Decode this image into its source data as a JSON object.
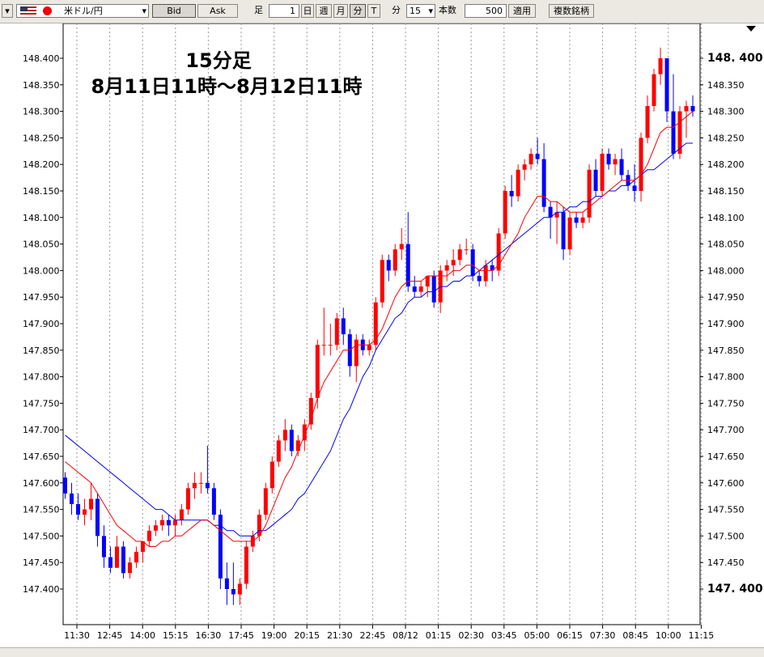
{
  "toolbar": {
    "pair": "米ドル/円",
    "bid_label": "Bid",
    "ask_label": "Ask",
    "ashi_label": "足",
    "ashi_value": "1",
    "day_label": "日",
    "week_label": "週",
    "month_label": "月",
    "minute_label": "分",
    "tick_label": "T",
    "minute_text": "分",
    "minute_value": "15",
    "count_label": "本数",
    "count_value": "500",
    "apply_label": "適用",
    "multi_label": "複数銘柄",
    "colors": {
      "up": "#ff0000",
      "down": "#0000ff",
      "ma_short": "#ff0000",
      "ma_long": "#0000ff"
    }
  },
  "title": {
    "line1": "15分足",
    "line2": "8月11日11時〜8月12日11時"
  },
  "chart_data": {
    "type": "candlestick",
    "x_tick_labels": [
      "11:30",
      "12:45",
      "14:00",
      "15:15",
      "16:30",
      "17:45",
      "19:00",
      "20:15",
      "21:30",
      "22:45",
      "08/12",
      "01:15",
      "02:30",
      "03:45",
      "05:00",
      "06:15",
      "07:30",
      "08:45",
      "10:00",
      "11:15"
    ],
    "y_tick_labels": [
      "148.400",
      "148.350",
      "148.300",
      "148.250",
      "148.200",
      "148.150",
      "148.100",
      "148.050",
      "148.000",
      "147.950",
      "147.900",
      "147.850",
      "147.800",
      "147.750",
      "147.700",
      "147.650",
      "147.600",
      "147.550",
      "147.500",
      "147.450",
      "147.400"
    ],
    "y_tick_labels_right": [
      "148. 400",
      "148.350",
      "148.300",
      "148.250",
      "148.200",
      "148.150",
      "148.100",
      "148.050",
      "148.000",
      "147.950",
      "147.900",
      "147.850",
      "147.800",
      "147.750",
      "147.700",
      "147.650",
      "147.600",
      "147.550",
      "147.500",
      "147.450",
      "147. 400"
    ],
    "y_range": [
      147.35,
      148.45
    ],
    "grid": "vertical-dashed",
    "up_color": "#ff0000",
    "down_color": "#0000ff",
    "candles": [
      [
        147.61,
        147.62,
        147.57,
        147.58
      ],
      [
        147.58,
        147.6,
        147.54,
        147.56
      ],
      [
        147.56,
        147.58,
        147.53,
        147.54
      ],
      [
        147.54,
        147.57,
        147.52,
        147.55
      ],
      [
        147.55,
        147.6,
        147.53,
        147.57
      ],
      [
        147.57,
        147.58,
        147.48,
        147.5
      ],
      [
        147.5,
        147.52,
        147.44,
        147.46
      ],
      [
        147.46,
        147.48,
        147.43,
        147.44
      ],
      [
        147.44,
        147.5,
        147.44,
        147.48
      ],
      [
        147.48,
        147.49,
        147.42,
        147.43
      ],
      [
        147.43,
        147.46,
        147.42,
        147.45
      ],
      [
        147.45,
        147.48,
        147.44,
        147.47
      ],
      [
        147.47,
        147.49,
        147.45,
        147.49
      ],
      [
        147.49,
        147.52,
        147.48,
        147.51
      ],
      [
        147.51,
        147.53,
        147.5,
        147.52
      ],
      [
        147.52,
        147.54,
        147.51,
        147.53
      ],
      [
        147.53,
        147.54,
        147.5,
        147.52
      ],
      [
        147.52,
        147.54,
        147.5,
        147.53
      ],
      [
        147.53,
        147.56,
        147.52,
        147.55
      ],
      [
        147.55,
        147.6,
        147.54,
        147.59
      ],
      [
        147.59,
        147.62,
        147.57,
        147.6
      ],
      [
        147.6,
        147.62,
        147.58,
        147.6
      ],
      [
        147.6,
        147.67,
        147.58,
        147.59
      ],
      [
        147.59,
        147.6,
        147.53,
        147.54
      ],
      [
        147.54,
        147.55,
        147.4,
        147.42
      ],
      [
        147.42,
        147.45,
        147.37,
        147.4
      ],
      [
        147.4,
        147.45,
        147.37,
        147.39
      ],
      [
        147.39,
        147.42,
        147.37,
        147.41
      ],
      [
        147.41,
        147.49,
        147.4,
        147.48
      ],
      [
        147.48,
        147.51,
        147.47,
        147.5
      ],
      [
        147.5,
        147.55,
        147.49,
        147.54
      ],
      [
        147.54,
        147.6,
        147.53,
        147.59
      ],
      [
        147.59,
        147.65,
        147.58,
        147.64
      ],
      [
        147.64,
        147.69,
        147.63,
        147.68
      ],
      [
        147.68,
        147.72,
        147.66,
        147.7
      ],
      [
        147.7,
        147.71,
        147.65,
        147.66
      ],
      [
        147.66,
        147.69,
        147.65,
        147.68
      ],
      [
        147.68,
        147.72,
        147.66,
        147.71
      ],
      [
        147.71,
        147.77,
        147.7,
        147.76
      ],
      [
        147.76,
        147.87,
        147.74,
        147.86
      ],
      [
        147.86,
        147.93,
        147.84,
        147.86
      ],
      [
        147.86,
        147.9,
        147.84,
        147.86
      ],
      [
        147.86,
        147.92,
        147.85,
        147.91
      ],
      [
        147.91,
        147.93,
        147.86,
        147.88
      ],
      [
        147.88,
        147.89,
        147.8,
        147.82
      ],
      [
        147.82,
        147.88,
        147.79,
        147.87
      ],
      [
        147.87,
        147.88,
        147.84,
        147.85
      ],
      [
        147.85,
        147.87,
        147.84,
        147.86
      ],
      [
        147.86,
        147.95,
        147.85,
        147.94
      ],
      [
        147.94,
        148.03,
        147.93,
        148.02
      ],
      [
        148.02,
        148.03,
        147.98,
        148.0
      ],
      [
        148.0,
        148.05,
        147.99,
        148.04
      ],
      [
        148.04,
        148.08,
        148.02,
        148.05
      ],
      [
        148.05,
        148.11,
        147.96,
        147.97
      ],
      [
        147.97,
        147.99,
        147.95,
        147.96
      ],
      [
        147.96,
        147.98,
        147.95,
        147.97
      ],
      [
        147.97,
        147.99,
        147.95,
        147.99
      ],
      [
        147.99,
        148.0,
        147.93,
        147.94
      ],
      [
        147.94,
        148.01,
        147.92,
        148.0
      ],
      [
        148.0,
        148.02,
        147.98,
        148.01
      ],
      [
        148.01,
        148.04,
        147.99,
        148.02
      ],
      [
        148.02,
        148.05,
        148.01,
        148.04
      ],
      [
        148.04,
        148.06,
        148.03,
        148.04
      ],
      [
        148.04,
        148.05,
        147.98,
        147.99
      ],
      [
        147.99,
        148.0,
        147.97,
        147.98
      ],
      [
        147.98,
        148.02,
        147.97,
        148.01
      ],
      [
        148.01,
        148.02,
        147.98,
        148.0
      ],
      [
        148.0,
        148.08,
        147.99,
        148.07
      ],
      [
        148.07,
        148.16,
        148.06,
        148.15
      ],
      [
        148.15,
        148.18,
        148.12,
        148.14
      ],
      [
        148.14,
        148.2,
        148.13,
        148.19
      ],
      [
        148.19,
        148.21,
        148.17,
        148.2
      ],
      [
        148.2,
        148.23,
        148.19,
        148.22
      ],
      [
        148.22,
        148.25,
        148.2,
        148.21
      ],
      [
        148.21,
        148.24,
        148.11,
        148.12
      ],
      [
        148.12,
        148.13,
        148.06,
        148.1
      ],
      [
        148.1,
        148.13,
        148.05,
        148.11
      ],
      [
        148.11,
        148.12,
        148.02,
        148.04
      ],
      [
        148.04,
        148.11,
        148.03,
        148.1
      ],
      [
        148.1,
        148.11,
        148.08,
        148.09
      ],
      [
        148.09,
        148.11,
        148.08,
        148.1
      ],
      [
        148.1,
        148.2,
        148.09,
        148.19
      ],
      [
        148.19,
        148.21,
        148.14,
        148.15
      ],
      [
        148.15,
        148.23,
        148.14,
        148.22
      ],
      [
        148.22,
        148.23,
        148.19,
        148.2
      ],
      [
        148.2,
        148.22,
        148.18,
        148.21
      ],
      [
        148.21,
        148.23,
        148.17,
        148.18
      ],
      [
        148.18,
        148.19,
        148.15,
        148.16
      ],
      [
        148.16,
        148.2,
        148.13,
        148.15
      ],
      [
        148.15,
        148.26,
        148.13,
        148.25
      ],
      [
        148.25,
        148.33,
        148.24,
        148.31
      ],
      [
        148.31,
        148.38,
        148.3,
        148.37
      ],
      [
        148.37,
        148.42,
        148.35,
        148.4
      ],
      [
        148.4,
        148.4,
        148.28,
        148.3
      ],
      [
        148.3,
        148.37,
        148.21,
        148.22
      ],
      [
        148.22,
        148.31,
        148.21,
        148.3
      ],
      [
        148.3,
        148.32,
        148.25,
        148.31
      ],
      [
        148.31,
        148.33,
        148.29,
        148.3
      ]
    ],
    "ma_short": [
      147.64,
      147.63,
      147.62,
      147.61,
      147.6,
      147.58,
      147.56,
      147.54,
      147.52,
      147.51,
      147.5,
      147.49,
      147.49,
      147.48,
      147.48,
      147.49,
      147.49,
      147.5,
      147.5,
      147.51,
      147.52,
      147.53,
      147.53,
      147.52,
      147.51,
      147.5,
      147.49,
      147.49,
      147.49,
      147.49,
      147.5,
      147.52,
      147.55,
      147.58,
      147.61,
      147.63,
      147.66,
      147.69,
      147.72,
      147.76,
      147.79,
      147.81,
      147.83,
      147.85,
      147.85,
      147.86,
      147.86,
      147.86,
      147.87,
      147.89,
      147.92,
      147.95,
      147.97,
      147.98,
      147.98,
      147.98,
      147.99,
      147.99,
      147.99,
      147.99,
      148.0,
      148.0,
      148.01,
      148.01,
      148.0,
      148.0,
      148.0,
      148.01,
      148.03,
      148.05,
      148.07,
      148.1,
      148.12,
      148.14,
      148.14,
      148.13,
      148.13,
      148.12,
      148.11,
      148.11,
      148.11,
      148.12,
      148.13,
      148.14,
      148.15,
      148.16,
      148.17,
      148.17,
      148.17,
      148.18,
      148.2,
      148.23,
      148.26,
      148.27,
      148.27,
      148.28,
      148.29,
      148.3
    ],
    "ma_long": [
      147.69,
      147.68,
      147.67,
      147.66,
      147.65,
      147.64,
      147.63,
      147.62,
      147.61,
      147.6,
      147.59,
      147.58,
      147.57,
      147.56,
      147.55,
      147.55,
      147.54,
      147.53,
      147.53,
      147.53,
      147.53,
      147.53,
      147.53,
      147.52,
      147.52,
      147.51,
      147.51,
      147.5,
      147.5,
      147.5,
      147.51,
      147.51,
      147.52,
      147.53,
      147.54,
      147.55,
      147.57,
      147.58,
      147.6,
      147.62,
      147.64,
      147.66,
      147.69,
      147.72,
      147.74,
      147.77,
      147.8,
      147.82,
      147.85,
      147.87,
      147.89,
      147.91,
      147.92,
      147.94,
      147.95,
      147.95,
      147.96,
      147.96,
      147.97,
      147.97,
      147.98,
      147.98,
      147.99,
      147.99,
      148.0,
      148.01,
      148.02,
      148.03,
      148.04,
      148.05,
      148.06,
      148.07,
      148.08,
      148.09,
      148.1,
      148.1,
      148.11,
      148.11,
      148.12,
      148.12,
      148.13,
      148.13,
      148.14,
      148.14,
      148.15,
      148.15,
      148.16,
      148.16,
      148.17,
      148.18,
      148.19,
      148.19,
      148.2,
      148.21,
      148.22,
      148.23,
      148.24,
      148.24
    ]
  },
  "statusbar": {
    "icons": [
      "first-page-icon",
      "prev-page-icon",
      "next-page-icon",
      "last-page-icon",
      "zoom-in-icon",
      "zoom-out-icon",
      "d-label",
      "h-label"
    ]
  }
}
